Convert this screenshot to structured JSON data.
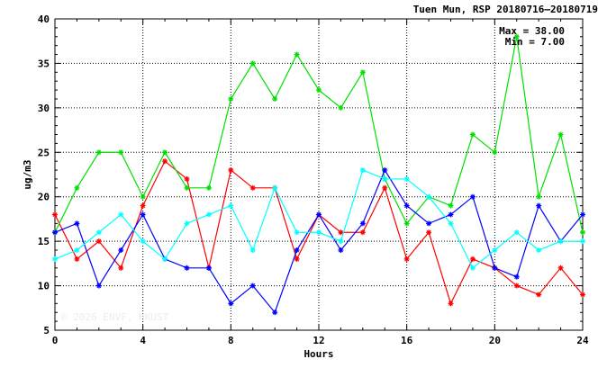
{
  "chart_data": {
    "type": "line",
    "title": "Tuen Mun, RSP 20180716–20180719",
    "xlabel": "Hours",
    "ylabel": "ug/m3",
    "xlim": [
      0,
      24
    ],
    "ylim": [
      5,
      40
    ],
    "xticks": [
      0,
      4,
      8,
      12,
      16,
      20,
      24
    ],
    "yticks": [
      5,
      10,
      15,
      20,
      25,
      30,
      35,
      40
    ],
    "grid": true,
    "stats": {
      "max_text": "Max = 38.00",
      "min_text": "Min =  7.00"
    },
    "watermark": "© 2026  ENVF, HKUST",
    "x": [
      0,
      1,
      2,
      3,
      4,
      5,
      6,
      7,
      8,
      9,
      10,
      11,
      12,
      13,
      14,
      15,
      16,
      17,
      18,
      19,
      20,
      21,
      22,
      23,
      24
    ],
    "series": [
      {
        "color": "#ff0000",
        "values": [
          18,
          13,
          15,
          12,
          19,
          24,
          22,
          12,
          23,
          21,
          21,
          13,
          18,
          16,
          16,
          21,
          13,
          16,
          8,
          13,
          12,
          10,
          9,
          12,
          9
        ]
      },
      {
        "color": "#00e000",
        "values": [
          16,
          21,
          25,
          25,
          20,
          25,
          21,
          21,
          31,
          35,
          31,
          36,
          32,
          30,
          34,
          22,
          17,
          20,
          19,
          27,
          25,
          38,
          20,
          27,
          16
        ]
      },
      {
        "color": "#0000ff",
        "values": [
          16,
          17,
          10,
          14,
          18,
          13,
          12,
          12,
          8,
          10,
          7,
          14,
          18,
          14,
          17,
          23,
          19,
          17,
          18,
          20,
          12,
          11,
          19,
          15,
          18
        ]
      },
      {
        "color": "#00ffff",
        "values": [
          13,
          14,
          16,
          18,
          15,
          13,
          17,
          18,
          19,
          14,
          21,
          16,
          16,
          15,
          23,
          22,
          22,
          20,
          17,
          12,
          14,
          16,
          14,
          15,
          15
        ]
      }
    ]
  }
}
